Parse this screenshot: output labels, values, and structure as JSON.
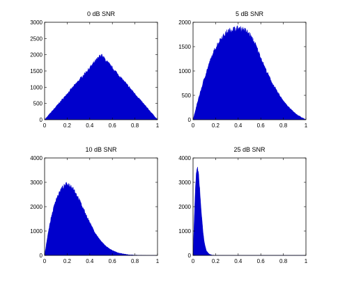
{
  "chart_data": [
    {
      "type": "area",
      "title": "0 dB SNR",
      "xlim": [
        0,
        1
      ],
      "ylim": [
        0,
        3000
      ],
      "xticks": [
        0,
        0.2,
        0.4,
        0.6,
        0.8,
        1
      ],
      "xtick_labels": [
        "0",
        "0.2",
        "0.4",
        "0.6",
        "0.8",
        "1"
      ],
      "yticks": [
        0,
        500,
        1000,
        1500,
        2000,
        2500,
        3000
      ],
      "ytick_labels": [
        "0",
        "500",
        "1000",
        "1500",
        "2000",
        "2500",
        "3000"
      ],
      "x": [
        0,
        0.05,
        0.1,
        0.15,
        0.2,
        0.25,
        0.3,
        0.35,
        0.4,
        0.45,
        0.5,
        0.55,
        0.6,
        0.65,
        0.7,
        0.75,
        0.8,
        0.85,
        0.9,
        0.95,
        1
      ],
      "y": [
        0,
        200,
        400,
        600,
        800,
        1000,
        1200,
        1400,
        1600,
        1800,
        2000,
        1800,
        1600,
        1400,
        1200,
        1000,
        800,
        600,
        400,
        200,
        0
      ],
      "color": "#0000cc",
      "grid": false
    },
    {
      "type": "area",
      "title": "5 dB SNR",
      "xlim": [
        0,
        1
      ],
      "ylim": [
        0,
        2000
      ],
      "xticks": [
        0,
        0.2,
        0.4,
        0.6,
        0.8,
        1
      ],
      "xtick_labels": [
        "0",
        "0.2",
        "0.4",
        "0.6",
        "0.8",
        "1"
      ],
      "yticks": [
        0,
        500,
        1000,
        1500,
        2000
      ],
      "ytick_labels": [
        "0",
        "500",
        "1000",
        "1500",
        "2000"
      ],
      "x": [
        0,
        0.05,
        0.1,
        0.15,
        0.2,
        0.25,
        0.3,
        0.35,
        0.4,
        0.45,
        0.5,
        0.55,
        0.6,
        0.65,
        0.7,
        0.75,
        0.8,
        0.85,
        0.9,
        0.95,
        1
      ],
      "y": [
        0,
        450,
        850,
        1200,
        1480,
        1680,
        1800,
        1860,
        1880,
        1860,
        1760,
        1560,
        1280,
        1000,
        760,
        560,
        390,
        250,
        140,
        60,
        0
      ],
      "color": "#0000cc",
      "grid": false
    },
    {
      "type": "area",
      "title": "10 dB SNR",
      "xlim": [
        0,
        1
      ],
      "ylim": [
        0,
        4000
      ],
      "xticks": [
        0,
        0.2,
        0.4,
        0.6,
        0.8,
        1
      ],
      "xtick_labels": [
        "0",
        "0.2",
        "0.4",
        "0.6",
        "0.8",
        "1"
      ],
      "yticks": [
        0,
        1000,
        2000,
        3000,
        4000
      ],
      "ytick_labels": [
        "0",
        "1000",
        "2000",
        "3000",
        "4000"
      ],
      "x": [
        0,
        0.03,
        0.06,
        0.1,
        0.15,
        0.2,
        0.25,
        0.3,
        0.35,
        0.4,
        0.45,
        0.5,
        0.55,
        0.6,
        0.65,
        0.7,
        0.75,
        0.8,
        0.85,
        0.9,
        1
      ],
      "y": [
        0,
        900,
        1600,
        2300,
        2750,
        2950,
        2800,
        2350,
        1850,
        1350,
        900,
        580,
        350,
        200,
        110,
        55,
        25,
        10,
        4,
        0,
        0
      ],
      "color": "#0000cc",
      "grid": false
    },
    {
      "type": "area",
      "title": "25 dB SNR",
      "xlim": [
        0,
        1
      ],
      "ylim": [
        0,
        4000
      ],
      "xticks": [
        0,
        0.2,
        0.4,
        0.6,
        0.8,
        1
      ],
      "xtick_labels": [
        "0",
        "0.2",
        "0.4",
        "0.6",
        "0.8",
        "1"
      ],
      "yticks": [
        0,
        1000,
        2000,
        3000,
        4000
      ],
      "ytick_labels": [
        "0",
        "1000",
        "2000",
        "3000",
        "4000"
      ],
      "x": [
        0,
        0.01,
        0.02,
        0.03,
        0.04,
        0.05,
        0.06,
        0.07,
        0.08,
        0.09,
        0.1,
        0.11,
        0.12,
        0.14,
        0.16,
        0.2,
        1
      ],
      "y": [
        0,
        1400,
        2700,
        3400,
        3600,
        3300,
        2700,
        2000,
        1400,
        900,
        550,
        320,
        180,
        70,
        20,
        0,
        0
      ],
      "color": "#0000cc",
      "grid": false
    }
  ]
}
